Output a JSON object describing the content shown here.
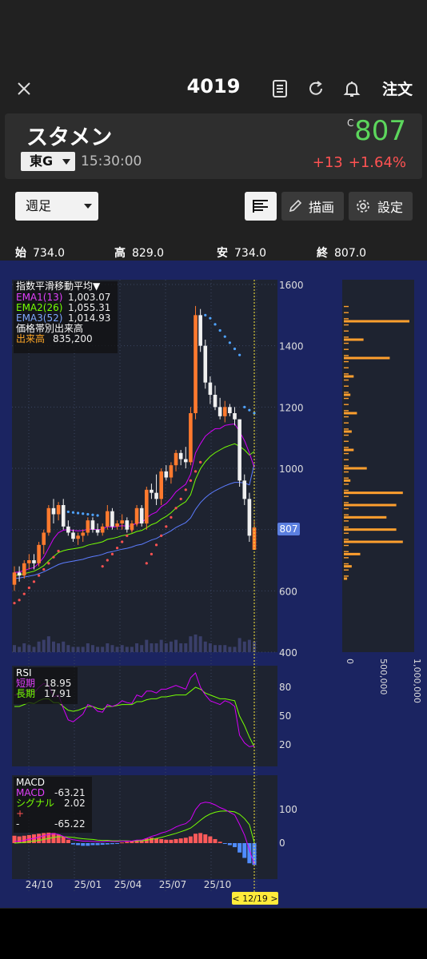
{
  "header": {
    "close_icon": "close-icon",
    "title": "4019",
    "icons": [
      "document-icon",
      "refresh-icon",
      "bell-icon"
    ],
    "order_label": "注文"
  },
  "stock": {
    "name": "スタメン",
    "market": "東G",
    "time": "15:30:00",
    "price_mark": "C",
    "price": "807",
    "change": "+13",
    "change_pct": "+1.64%",
    "price_color": "#5cd65c",
    "change_color": "#ff5252"
  },
  "toolbar": {
    "period": "週足",
    "draw_label": "描画",
    "settings_label": "設定",
    "menu_icon": "list-icon"
  },
  "ohlc": [
    {
      "label": "始",
      "value": "734.0"
    },
    {
      "label": "高",
      "value": "829.0"
    },
    {
      "label": "安",
      "value": "734.0"
    },
    {
      "label": "終",
      "value": "807.0"
    }
  ],
  "legend": {
    "title": "指数平滑移動平均▼",
    "ema1": "EMA1(13)",
    "ema1_val": "1,003.07",
    "ema2": "EMA2(26)",
    "ema2_val": "1,055.31",
    "ema3": "EMA3(52)",
    "ema3_val": "1,014.93",
    "vp": "価格帯別出来高",
    "vol_label": "出来高",
    "vol_val": "835,200"
  },
  "rsi": {
    "title": "RSI",
    "short_label": "短期",
    "short_val": "18.95",
    "long_label": "長期",
    "long_val": "17.91"
  },
  "macd": {
    "title": "MACD",
    "macd_label": "MACD",
    "macd_val": "-63.21",
    "signal_label": "シグナル",
    "signal_val": "2.02",
    "plus_label": "+",
    "minus_label": "-",
    "hist_val": "-65.22"
  },
  "price_axis": [
    "1600",
    "1400",
    "1200",
    "1000",
    "800",
    "600",
    "400"
  ],
  "price_tag": "807",
  "rsi_axis": [
    "80",
    "50",
    "20"
  ],
  "macd_axis": [
    "100",
    "0"
  ],
  "vol_axis": [
    "0",
    "500,000",
    "1,000,000"
  ],
  "date_labels": [
    "24/10",
    "25/01",
    "25/04",
    "25/07",
    "25/10"
  ],
  "cursor_label": "< 12/19 >",
  "chart_data": {
    "type": "candlestick",
    "candles": [
      [
        620,
        680,
        600,
        660
      ],
      [
        660,
        680,
        630,
        650
      ],
      [
        650,
        700,
        640,
        690
      ],
      [
        690,
        720,
        670,
        700
      ],
      [
        700,
        720,
        670,
        690
      ],
      [
        690,
        760,
        680,
        750
      ],
      [
        750,
        800,
        720,
        790
      ],
      [
        790,
        880,
        780,
        870
      ],
      [
        870,
        900,
        820,
        850
      ],
      [
        850,
        890,
        830,
        880
      ],
      [
        880,
        900,
        800,
        810
      ],
      [
        810,
        830,
        780,
        790
      ],
      [
        790,
        800,
        760,
        770
      ],
      [
        770,
        790,
        750,
        780
      ],
      [
        780,
        800,
        760,
        790
      ],
      [
        790,
        840,
        780,
        830
      ],
      [
        830,
        840,
        790,
        800
      ],
      [
        800,
        820,
        780,
        790
      ],
      [
        790,
        820,
        780,
        810
      ],
      [
        810,
        880,
        800,
        860
      ],
      [
        860,
        870,
        800,
        810
      ],
      [
        810,
        830,
        800,
        820
      ],
      [
        820,
        850,
        800,
        830
      ],
      [
        830,
        840,
        790,
        800
      ],
      [
        800,
        830,
        790,
        820
      ],
      [
        820,
        880,
        810,
        870
      ],
      [
        870,
        880,
        810,
        820
      ],
      [
        820,
        940,
        800,
        930
      ],
      [
        930,
        950,
        900,
        920
      ],
      [
        920,
        980,
        880,
        900
      ],
      [
        900,
        1000,
        880,
        990
      ],
      [
        990,
        1010,
        960,
        970
      ],
      [
        970,
        1020,
        950,
        1010
      ],
      [
        1010,
        1060,
        990,
        1050
      ],
      [
        1050,
        1060,
        1010,
        1030
      ],
      [
        1030,
        1070,
        1000,
        1020
      ],
      [
        1020,
        1200,
        1010,
        1180
      ],
      [
        1180,
        1530,
        1160,
        1500
      ],
      [
        1500,
        1520,
        1380,
        1400
      ],
      [
        1400,
        1420,
        1260,
        1280
      ],
      [
        1280,
        1300,
        1210,
        1240
      ],
      [
        1240,
        1270,
        1190,
        1200
      ],
      [
        1200,
        1230,
        1160,
        1170
      ],
      [
        1170,
        1220,
        1150,
        1200
      ],
      [
        1200,
        1210,
        1170,
        1180
      ],
      [
        1180,
        1200,
        1140,
        1160
      ],
      [
        1160,
        1160,
        940,
        960
      ],
      [
        960,
        980,
        880,
        900
      ],
      [
        900,
        920,
        760,
        780
      ],
      [
        734,
        829,
        734,
        807
      ]
    ],
    "ema1": [
      660,
      662,
      666,
      672,
      676,
      690,
      710,
      740,
      770,
      790,
      798,
      800,
      797,
      796,
      797,
      801,
      801,
      800,
      801,
      810,
      808,
      810,
      813,
      811,
      812,
      823,
      822,
      838,
      850,
      857,
      875,
      885,
      902,
      923,
      936,
      948,
      981,
      1050,
      1080,
      1105,
      1118,
      1129,
      1130,
      1140,
      1143,
      1145,
      1120,
      1090,
      1050,
      1003
    ],
    "ema2": [
      650,
      652,
      656,
      660,
      664,
      672,
      682,
      698,
      712,
      725,
      731,
      735,
      737,
      740,
      743,
      749,
      753,
      756,
      760,
      768,
      771,
      775,
      780,
      783,
      787,
      794,
      797,
      806,
      816,
      822,
      834,
      843,
      855,
      870,
      881,
      891,
      914,
      964,
      999,
      1022,
      1039,
      1051,
      1060,
      1069,
      1075,
      1080,
      1072,
      1060,
      1043,
      1055
    ],
    "ema3": [
      640,
      642,
      645,
      648,
      651,
      656,
      662,
      670,
      678,
      686,
      691,
      694,
      697,
      700,
      703,
      708,
      712,
      715,
      719,
      725,
      728,
      732,
      736,
      739,
      743,
      749,
      752,
      759,
      766,
      771,
      780,
      787,
      796,
      807,
      815,
      823,
      838,
      866,
      888,
      904,
      917,
      927,
      935,
      943,
      949,
      954,
      954,
      952,
      946,
      1014
    ],
    "psar": [
      560,
      570,
      590,
      610,
      630,
      650,
      670,
      690,
      710,
      730,
      860,
      858,
      856,
      854,
      852,
      850,
      848,
      846,
      680,
      700,
      720,
      740,
      760,
      780,
      800,
      820,
      840,
      690,
      720,
      750,
      780,
      810,
      840,
      870,
      900,
      930,
      960,
      990,
      1020,
      1500,
      1490,
      1470,
      1450,
      1430,
      1410,
      1390,
      1370,
      1200,
      1190,
      1180
    ],
    "vol_profile": [
      [
        1480,
        1.0
      ],
      [
        1420,
        0.3
      ],
      [
        1360,
        0.7
      ],
      [
        1300,
        0.15
      ],
      [
        1240,
        0.1
      ],
      [
        1180,
        0.2
      ],
      [
        1120,
        0.12
      ],
      [
        1060,
        0.15
      ],
      [
        1000,
        0.35
      ],
      [
        960,
        0.1
      ],
      [
        920,
        0.9
      ],
      [
        880,
        0.8
      ],
      [
        840,
        0.65
      ],
      [
        800,
        0.8
      ],
      [
        760,
        0.9
      ],
      [
        720,
        0.25
      ],
      [
        680,
        0.12
      ],
      [
        640,
        0.05
      ]
    ],
    "rsi_short": [
      72,
      72,
      76,
      78,
      74,
      80,
      84,
      82,
      70,
      72,
      58,
      46,
      44,
      48,
      52,
      62,
      60,
      55,
      54,
      62,
      60,
      62,
      66,
      64,
      63,
      72,
      70,
      76,
      76,
      74,
      78,
      78,
      80,
      82,
      80,
      78,
      90,
      95,
      80,
      72,
      66,
      64,
      62,
      66,
      64,
      60,
      30,
      22,
      18,
      19
    ],
    "rsi_long": [
      60,
      60,
      62,
      64,
      63,
      66,
      68,
      68,
      64,
      64,
      60,
      56,
      55,
      56,
      58,
      60,
      60,
      58,
      57,
      60,
      60,
      61,
      62,
      62,
      62,
      65,
      65,
      67,
      68,
      68,
      70,
      70,
      71,
      72,
      72,
      72,
      76,
      80,
      78,
      74,
      72,
      70,
      68,
      68,
      67,
      66,
      50,
      40,
      28,
      18
    ],
    "macd": [
      5,
      5,
      8,
      12,
      14,
      18,
      22,
      26,
      28,
      26,
      20,
      14,
      10,
      8,
      6,
      6,
      5,
      4,
      4,
      6,
      5,
      5,
      6,
      6,
      6,
      9,
      9,
      14,
      20,
      24,
      30,
      34,
      40,
      48,
      54,
      58,
      70,
      100,
      118,
      122,
      120,
      114,
      106,
      100,
      92,
      84,
      56,
      24,
      -20,
      -63
    ],
    "signal": [
      0,
      1,
      2,
      4,
      6,
      8,
      11,
      14,
      17,
      19,
      19,
      18,
      17,
      15,
      13,
      12,
      11,
      9,
      8,
      8,
      7,
      7,
      7,
      7,
      6,
      7,
      7,
      9,
      11,
      14,
      17,
      21,
      25,
      29,
      34,
      39,
      45,
      56,
      68,
      79,
      87,
      92,
      95,
      96,
      95,
      93,
      86,
      73,
      55,
      2
    ],
    "hist": [
      22,
      20,
      22,
      24,
      26,
      28,
      30,
      32,
      30,
      26,
      18,
      10,
      -4,
      -6,
      -8,
      -8,
      -6,
      -6,
      -5,
      -4,
      -3,
      -2,
      2,
      4,
      6,
      8,
      10,
      14,
      16,
      14,
      12,
      10,
      10,
      12,
      14,
      16,
      20,
      28,
      30,
      26,
      20,
      12,
      4,
      -2,
      -6,
      -12,
      -28,
      -44,
      -60,
      -65
    ],
    "volume": [
      0.4,
      0.3,
      0.5,
      0.4,
      0.3,
      0.6,
      0.7,
      0.9,
      0.6,
      0.5,
      0.6,
      0.4,
      0.3,
      0.3,
      0.3,
      0.5,
      0.4,
      0.3,
      0.3,
      0.5,
      0.4,
      0.3,
      0.4,
      0.3,
      0.3,
      0.5,
      0.4,
      0.7,
      0.5,
      0.5,
      0.7,
      0.5,
      0.6,
      0.7,
      0.5,
      0.5,
      0.9,
      1.0,
      0.9,
      0.6,
      0.5,
      0.4,
      0.4,
      0.4,
      0.3,
      0.3,
      0.8,
      0.6,
      0.7,
      0.6
    ],
    "ylim": [
      400,
      1600
    ]
  }
}
